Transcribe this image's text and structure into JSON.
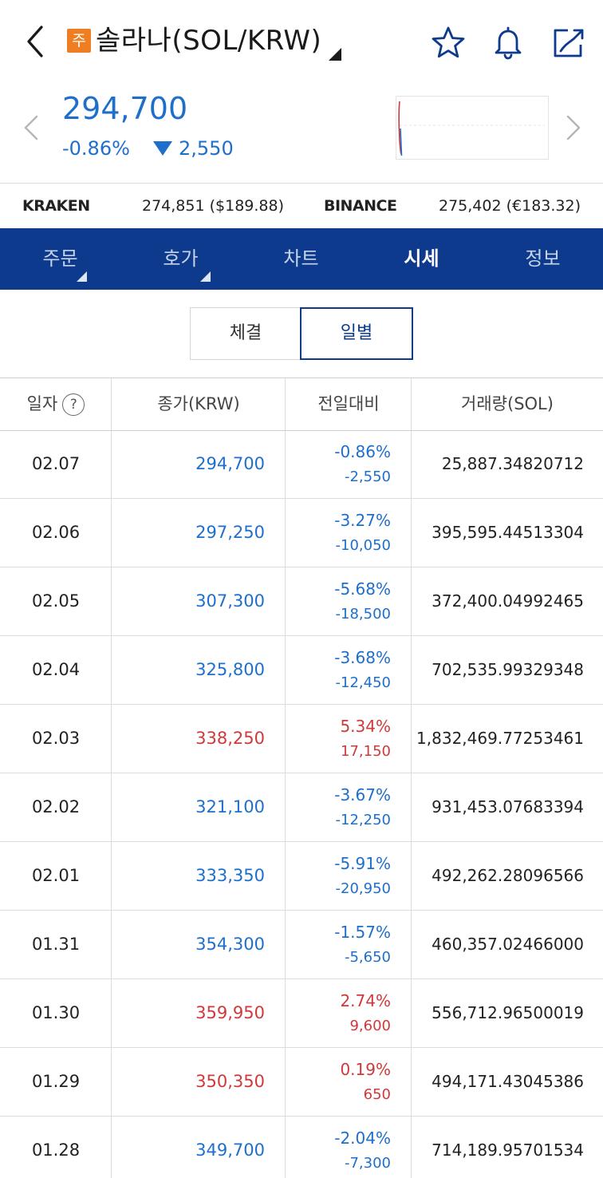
{
  "header": {
    "badge": "주",
    "title": "솔라나(SOL/KRW)"
  },
  "price": {
    "current": "294,700",
    "change_pct": "-0.86%",
    "change_amount": "2,550",
    "direction": "down"
  },
  "exchanges": [
    {
      "name": "KRAKEN",
      "value": "274,851 ($189.88)"
    },
    {
      "name": "BINANCE",
      "value": "275,402 (€183.32)"
    }
  ],
  "tabs": [
    {
      "label": "주문",
      "has_dropdown": true
    },
    {
      "label": "호가",
      "has_dropdown": true
    },
    {
      "label": "차트",
      "has_dropdown": false
    },
    {
      "label": "시세",
      "has_dropdown": false,
      "active": true
    },
    {
      "label": "정보",
      "has_dropdown": false
    }
  ],
  "segments": {
    "items": [
      "체결",
      "일별"
    ],
    "selected": "일별"
  },
  "table": {
    "headers": {
      "date": "일자",
      "close": "종가(KRW)",
      "change": "전일대비",
      "volume": "거래량(SOL)"
    },
    "help_symbol": "?",
    "rows": [
      {
        "date": "02.07",
        "close": "294,700",
        "pct": "-0.86%",
        "diff": "-2,550",
        "volume": "25,887.34820712",
        "dir": "down"
      },
      {
        "date": "02.06",
        "close": "297,250",
        "pct": "-3.27%",
        "diff": "-10,050",
        "volume": "395,595.44513304",
        "dir": "down"
      },
      {
        "date": "02.05",
        "close": "307,300",
        "pct": "-5.68%",
        "diff": "-18,500",
        "volume": "372,400.04992465",
        "dir": "down"
      },
      {
        "date": "02.04",
        "close": "325,800",
        "pct": "-3.68%",
        "diff": "-12,450",
        "volume": "702,535.99329348",
        "dir": "down"
      },
      {
        "date": "02.03",
        "close": "338,250",
        "pct": "5.34%",
        "diff": "17,150",
        "volume": "1,832,469.77253461",
        "dir": "up"
      },
      {
        "date": "02.02",
        "close": "321,100",
        "pct": "-3.67%",
        "diff": "-12,250",
        "volume": "931,453.07683394",
        "dir": "down"
      },
      {
        "date": "02.01",
        "close": "333,350",
        "pct": "-5.91%",
        "diff": "-20,950",
        "volume": "492,262.28096566",
        "dir": "down"
      },
      {
        "date": "01.31",
        "close": "354,300",
        "pct": "-1.57%",
        "diff": "-5,650",
        "volume": "460,357.02466000",
        "dir": "down"
      },
      {
        "date": "01.30",
        "close": "359,950",
        "pct": "2.74%",
        "diff": "9,600",
        "volume": "556,712.96500019",
        "dir": "up"
      },
      {
        "date": "01.29",
        "close": "350,350",
        "pct": "0.19%",
        "diff": "650",
        "volume": "494,171.43045386",
        "dir": "up"
      },
      {
        "date": "01.28",
        "close": "349,700",
        "pct": "-2.04%",
        "diff": "-7,300",
        "volume": "714,189.95701534",
        "dir": "down"
      }
    ]
  },
  "colors": {
    "up": "#d0393b",
    "down": "#1e6fcb",
    "tabbar": "#0d3a8c",
    "badge": "#ef7d22"
  },
  "icons": [
    "chevron-left-icon",
    "star-icon",
    "bell-icon",
    "share-icon",
    "chevron-right-icon",
    "help-circle-icon"
  ]
}
